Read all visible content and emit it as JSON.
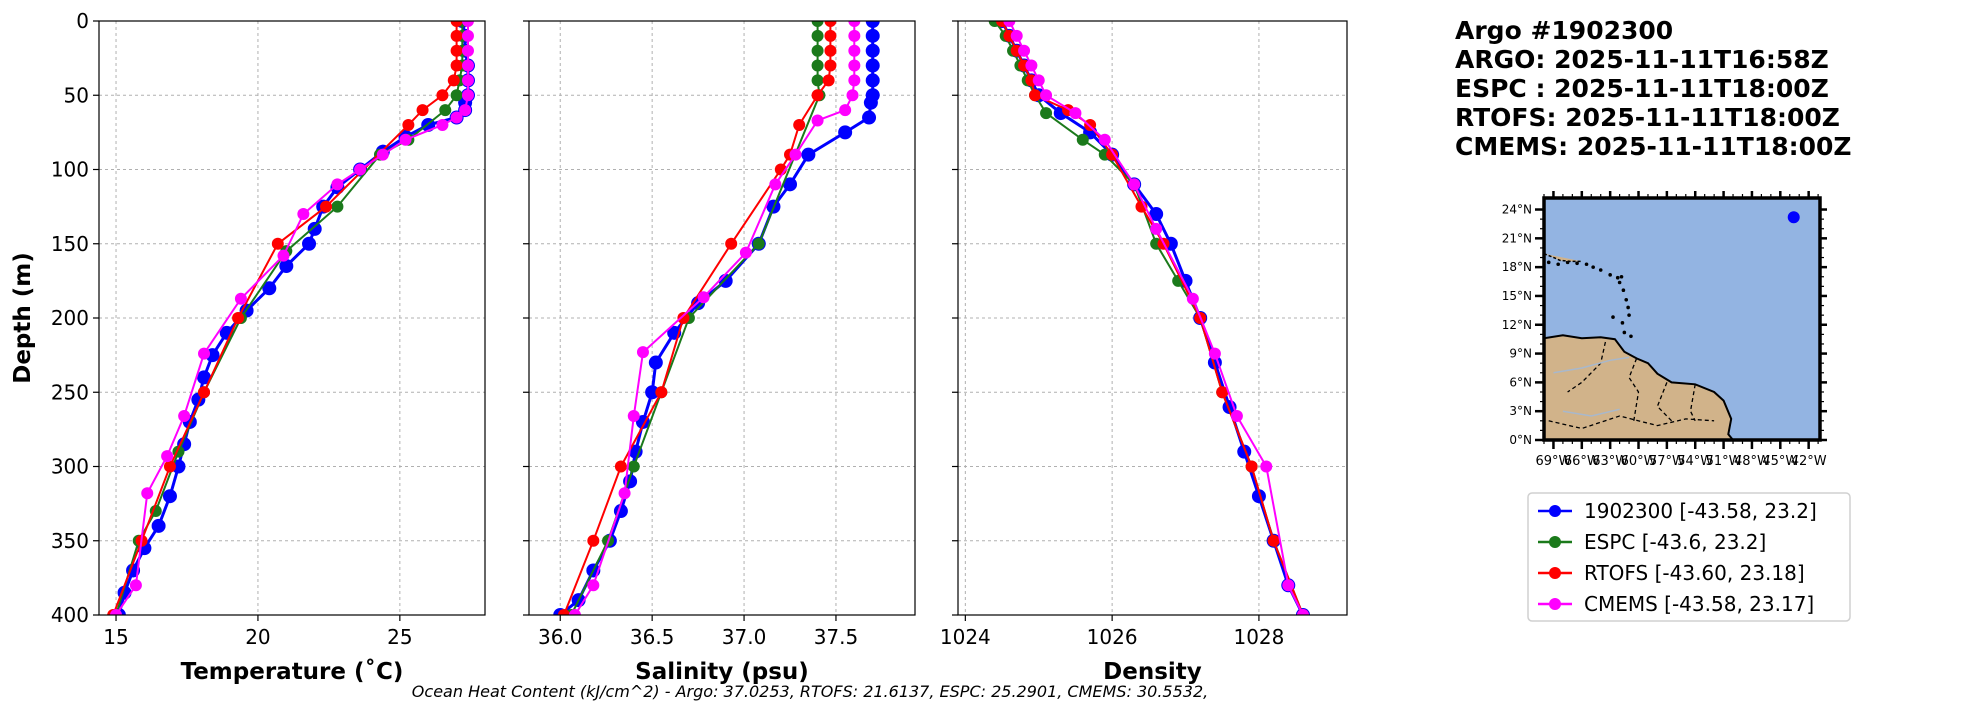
{
  "colors": {
    "argo": "#0000ff",
    "espc": "#1b7a1b",
    "rtofs": "#ff0000",
    "cmems": "#ff00ff",
    "ocean": "#93b4e2",
    "land": "#d1b38a"
  },
  "header": {
    "lines": [
      "Argo #1902300",
      "ARGO: 2025-11-11T16:58Z",
      "ESPC : 2025-11-11T18:00Z",
      "RTOFS: 2025-11-11T18:00Z",
      "CMEMS: 2025-11-11T18:00Z"
    ]
  },
  "footer": {
    "text": "Ocean Heat Content (kJ/cm^2) - Argo: 37.0253,  RTOFS: 21.6137,  ESPC: 25.2901,  CMEMS: 30.5532,"
  },
  "legend": {
    "entries": [
      {
        "label": "1902300 [-43.58, 23.2]",
        "series": "argo"
      },
      {
        "label": "ESPC [-43.6, 23.2]",
        "series": "espc"
      },
      {
        "label": "RTOFS [-43.60, 23.18]",
        "series": "rtofs"
      },
      {
        "label": "CMEMS [-43.58, 23.17]",
        "series": "cmems"
      }
    ]
  },
  "chart_data": [
    {
      "type": "line",
      "id": "temperature",
      "xlabel": "Temperature (˚C)",
      "ylabel": "Depth (m)",
      "xlim": [
        14.4,
        28.0
      ],
      "ylim": [
        400,
        0
      ],
      "xticks": [
        15,
        20,
        25
      ],
      "yticks": [
        0,
        50,
        100,
        150,
        200,
        250,
        300,
        350,
        400
      ],
      "grid": true,
      "series": [
        {
          "name": "argo",
          "x": [
            27.2,
            27.3,
            27.3,
            27.4,
            27.4,
            27.4,
            27.3,
            27.3,
            27.0,
            26.0,
            25.2,
            24.4,
            23.6,
            22.8,
            22.3,
            22.0,
            21.8,
            21.0,
            20.4,
            19.6,
            18.9,
            18.4,
            18.1,
            17.9,
            17.6,
            17.4,
            17.2,
            16.9,
            16.5,
            16.0,
            15.6,
            15.3,
            15.1
          ],
          "y": [
            0,
            10,
            20,
            30,
            40,
            50,
            55,
            60,
            65,
            70,
            78,
            88,
            100,
            112,
            125,
            140,
            150,
            165,
            180,
            195,
            210,
            225,
            240,
            255,
            270,
            285,
            300,
            320,
            340,
            355,
            370,
            385,
            400
          ]
        },
        {
          "name": "espc",
          "x": [
            27.2,
            27.2,
            27.2,
            27.2,
            27.1,
            27.0,
            26.6,
            25.3,
            24.3,
            22.8,
            21.0,
            19.4,
            18.1,
            17.2,
            16.4,
            15.8,
            15.0
          ],
          "y": [
            0,
            10,
            20,
            30,
            40,
            50,
            60,
            80,
            90,
            125,
            155,
            200,
            250,
            290,
            330,
            350,
            400
          ]
        },
        {
          "name": "rtofs",
          "x": [
            27.0,
            27.0,
            27.0,
            27.0,
            26.9,
            26.5,
            25.8,
            25.3,
            22.4,
            20.7,
            19.3,
            18.1,
            16.9,
            15.9,
            14.9
          ],
          "y": [
            0,
            10,
            20,
            30,
            40,
            50,
            60,
            70,
            125,
            150,
            200,
            250,
            300,
            350,
            400
          ]
        },
        {
          "name": "cmems",
          "x": [
            27.4,
            27.4,
            27.4,
            27.4,
            27.4,
            27.4,
            27.3,
            27.0,
            26.5,
            25.2,
            24.4,
            23.6,
            22.8,
            21.6,
            20.9,
            19.4,
            18.1,
            17.4,
            16.8,
            16.1,
            15.7,
            15.0
          ],
          "y": [
            0,
            10,
            20,
            30,
            40,
            50,
            60,
            65,
            70,
            80,
            90,
            100,
            110,
            130,
            158,
            187,
            224,
            266,
            293,
            318,
            380,
            400
          ]
        }
      ]
    },
    {
      "type": "line",
      "id": "salinity",
      "xlabel": "Salinity (psu)",
      "xlim": [
        35.83,
        37.93
      ],
      "ylim": [
        400,
        0
      ],
      "xticks": [
        36.0,
        36.5,
        37.0,
        37.5
      ],
      "xtick_labels": [
        "36.0",
        "36.5",
        "37.0",
        "37.5"
      ],
      "grid": true,
      "series": [
        {
          "name": "argo",
          "x": [
            37.7,
            37.7,
            37.7,
            37.7,
            37.7,
            37.7,
            37.69,
            37.68,
            37.55,
            37.35,
            37.25,
            37.16,
            37.08,
            36.9,
            36.75,
            36.62,
            36.52,
            36.5,
            36.45,
            36.41,
            36.38,
            36.33,
            36.27,
            36.18,
            36.1,
            36.0
          ],
          "y": [
            0,
            10,
            20,
            30,
            40,
            50,
            55,
            65,
            75,
            90,
            110,
            125,
            150,
            175,
            190,
            210,
            230,
            250,
            270,
            290,
            310,
            330,
            350,
            370,
            390,
            400
          ]
        },
        {
          "name": "espc",
          "x": [
            37.4,
            37.4,
            37.4,
            37.4,
            37.4,
            37.41,
            37.08,
            36.7,
            36.55,
            36.4,
            36.26,
            36.06
          ],
          "y": [
            0,
            10,
            20,
            30,
            40,
            50,
            150,
            200,
            250,
            300,
            350,
            400
          ]
        },
        {
          "name": "rtofs",
          "x": [
            37.47,
            37.47,
            37.47,
            37.47,
            37.46,
            37.4,
            37.3,
            37.25,
            37.2,
            36.93,
            36.67,
            36.55,
            36.33,
            36.18,
            36.02
          ],
          "y": [
            0,
            10,
            20,
            30,
            40,
            50,
            70,
            90,
            100,
            150,
            200,
            250,
            300,
            350,
            400
          ]
        },
        {
          "name": "cmems",
          "x": [
            37.6,
            37.6,
            37.6,
            37.6,
            37.6,
            37.59,
            37.55,
            37.4,
            37.28,
            37.17,
            37.01,
            36.78,
            36.45,
            36.4,
            36.35,
            36.18,
            36.08
          ],
          "y": [
            0,
            10,
            20,
            30,
            40,
            50,
            60,
            67,
            90,
            110,
            156,
            186,
            223,
            266,
            318,
            380,
            400
          ]
        }
      ]
    },
    {
      "type": "line",
      "id": "density",
      "xlabel": "Density",
      "xlim": [
        1023.9,
        1029.2
      ],
      "ylim": [
        400,
        0
      ],
      "xticks": [
        1024,
        1026,
        1028
      ],
      "grid": true,
      "series": [
        {
          "name": "argo",
          "x": [
            1024.5,
            1024.6,
            1024.7,
            1024.8,
            1024.9,
            1025.0,
            1025.3,
            1025.7,
            1026.0,
            1026.3,
            1026.6,
            1026.8,
            1027.0,
            1027.2,
            1027.4,
            1027.6,
            1027.8,
            1028.0,
            1028.2,
            1028.4,
            1028.6
          ],
          "y": [
            0,
            10,
            20,
            30,
            40,
            50,
            62,
            75,
            90,
            110,
            130,
            150,
            175,
            200,
            230,
            260,
            290,
            320,
            350,
            380,
            400
          ]
        },
        {
          "name": "espc",
          "x": [
            1024.4,
            1024.55,
            1024.65,
            1024.75,
            1024.85,
            1024.95,
            1025.1,
            1025.6,
            1025.9,
            1026.3,
            1026.6,
            1026.9,
            1027.2,
            1027.5,
            1027.9,
            1028.2,
            1028.6
          ],
          "y": [
            0,
            10,
            20,
            30,
            40,
            50,
            62,
            80,
            90,
            110,
            150,
            175,
            200,
            250,
            300,
            350,
            400
          ]
        },
        {
          "name": "rtofs",
          "x": [
            1024.5,
            1024.6,
            1024.7,
            1024.8,
            1024.9,
            1024.95,
            1025.4,
            1025.7,
            1026.0,
            1026.4,
            1026.7,
            1027.2,
            1027.5,
            1027.9,
            1028.2,
            1028.6
          ],
          "y": [
            0,
            10,
            20,
            30,
            40,
            50,
            60,
            70,
            90,
            125,
            150,
            200,
            250,
            300,
            350,
            400
          ]
        },
        {
          "name": "cmems",
          "x": [
            1024.6,
            1024.7,
            1024.8,
            1024.9,
            1025.0,
            1025.1,
            1025.5,
            1025.9,
            1026.3,
            1026.6,
            1027.1,
            1027.4,
            1027.7,
            1028.1,
            1028.4,
            1028.6
          ],
          "y": [
            0,
            10,
            20,
            30,
            40,
            50,
            62,
            80,
            110,
            140,
            187,
            224,
            266,
            300,
            380,
            400
          ]
        }
      ]
    }
  ],
  "inset_map": {
    "lon_ticks": [
      "69°W",
      "66°W",
      "63°W",
      "60°W",
      "57°W",
      "54°W",
      "51°W",
      "48°W",
      "45°W",
      "42°W"
    ],
    "lat_ticks": [
      "24°N",
      "21°N",
      "18°N",
      "15°N",
      "12°N",
      "9°N",
      "6°N",
      "3°N",
      "0°N"
    ],
    "lon_range": [
      -70.0,
      -40.8
    ],
    "lat_range": [
      0.0,
      25.2
    ],
    "float_position": {
      "lon": -43.58,
      "lat": 23.2
    }
  }
}
